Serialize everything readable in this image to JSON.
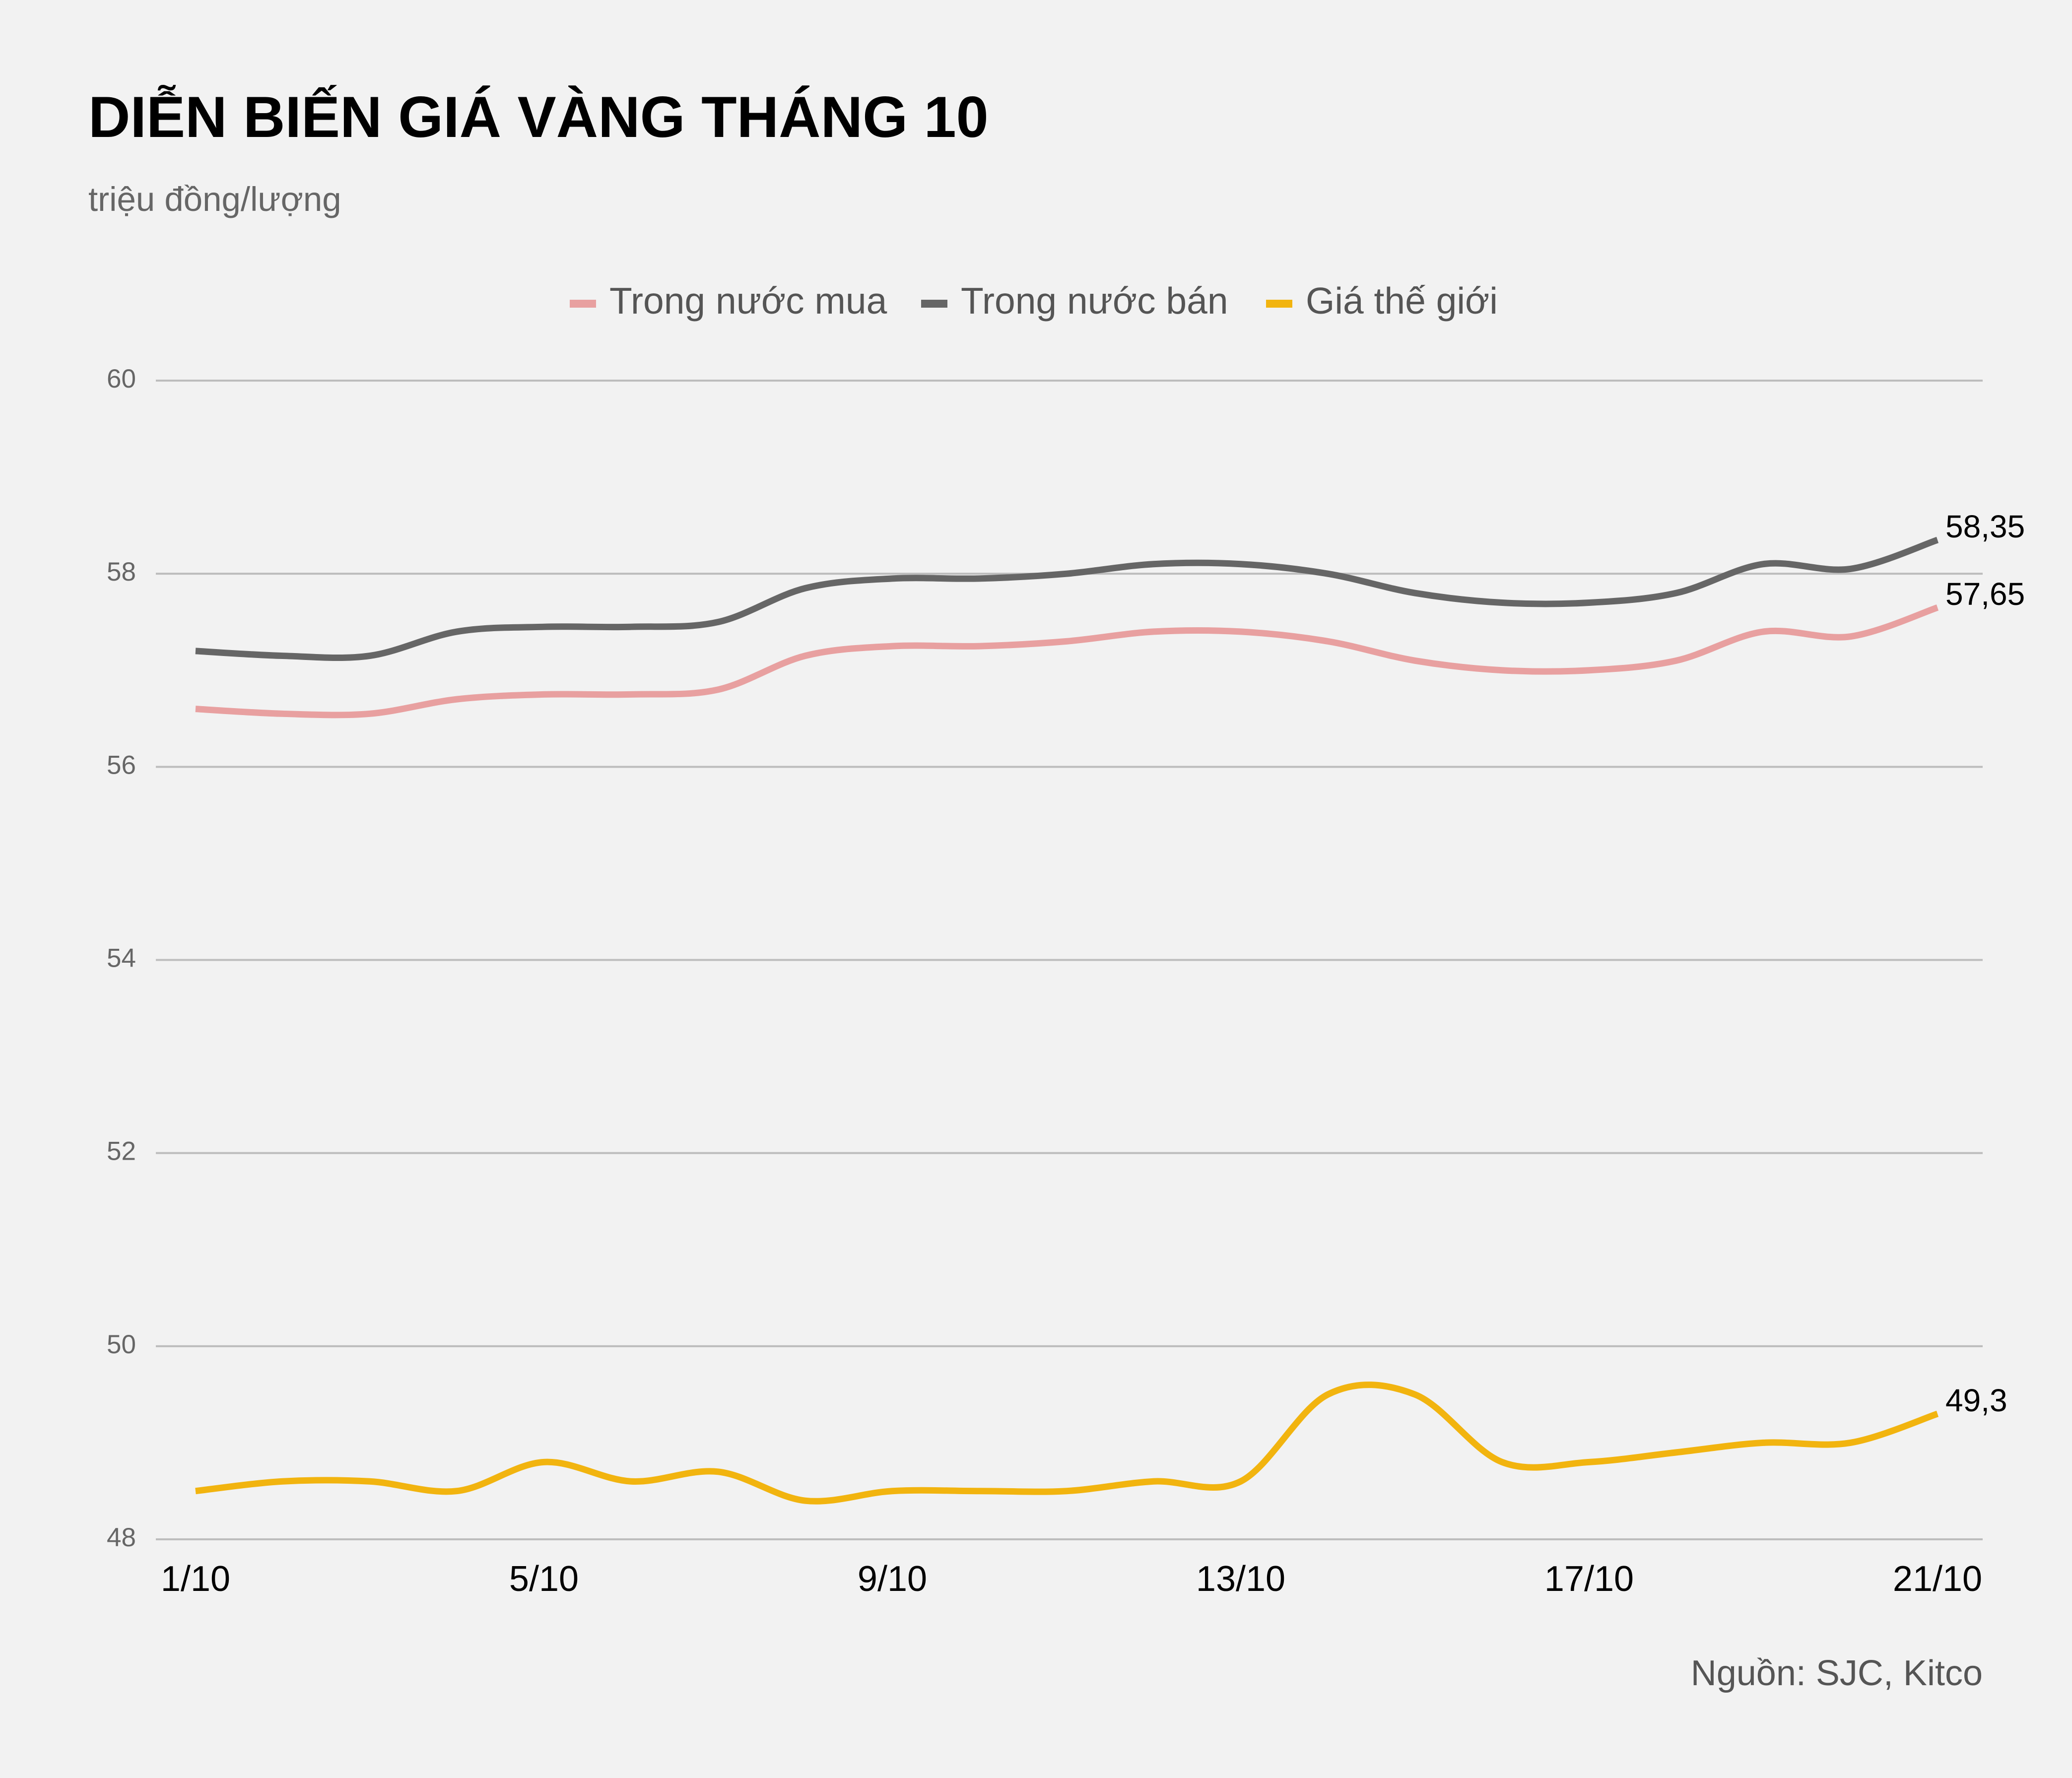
{
  "chart_data": {
    "type": "line",
    "title": "DIỄN BIẾN GIÁ VÀNG THÁNG 10",
    "subtitle": "triệu đồng/lượng",
    "source": "Nguồn: SJC, Kitco",
    "categories": [
      "1/10",
      null,
      null,
      null,
      "5/10",
      null,
      null,
      null,
      "9/10",
      null,
      null,
      null,
      "13/10",
      null,
      null,
      null,
      "17/10",
      null,
      null,
      null,
      "21/10"
    ],
    "series": [
      {
        "name": "Trong nước mua",
        "color": "#e8a0a0",
        "values": [
          56.6,
          56.55,
          56.55,
          56.7,
          56.75,
          56.75,
          56.8,
          57.15,
          57.25,
          57.25,
          57.3,
          57.4,
          57.4,
          57.3,
          57.1,
          57.0,
          57.0,
          57.1,
          57.4,
          57.35,
          57.65
        ],
        "value_labels": [
          null,
          null,
          null,
          null,
          null,
          null,
          null,
          null,
          null,
          null,
          null,
          null,
          null,
          null,
          null,
          null,
          null,
          null,
          null,
          null,
          "57,65"
        ]
      },
      {
        "name": "Trong nước bán",
        "color": "#666666",
        "values": [
          57.2,
          57.15,
          57.15,
          57.4,
          57.45,
          57.45,
          57.5,
          57.85,
          57.95,
          57.95,
          58.0,
          58.1,
          58.1,
          58.0,
          57.8,
          57.7,
          57.7,
          57.8,
          58.1,
          58.05,
          58.35
        ],
        "value_labels": [
          null,
          null,
          null,
          null,
          null,
          null,
          null,
          null,
          null,
          null,
          null,
          null,
          null,
          null,
          null,
          null,
          null,
          null,
          null,
          null,
          "58,35"
        ]
      },
      {
        "name": "Giá thế giới",
        "color": "#f2b40f",
        "values": [
          48.5,
          48.6,
          48.6,
          48.5,
          48.8,
          48.6,
          48.7,
          48.4,
          48.5,
          48.5,
          48.5,
          48.6,
          48.6,
          49.5,
          49.5,
          48.8,
          48.8,
          48.9,
          49.0,
          49.0,
          49.3
        ],
        "value_labels": [
          null,
          null,
          null,
          null,
          null,
          null,
          null,
          null,
          null,
          null,
          null,
          null,
          null,
          null,
          null,
          null,
          null,
          null,
          null,
          null,
          "49,3"
        ]
      }
    ],
    "ylim": [
      48,
      60
    ],
    "yticks": [
      48,
      50,
      52,
      54,
      56,
      58,
      60
    ],
    "grid": true,
    "legend": "top"
  }
}
